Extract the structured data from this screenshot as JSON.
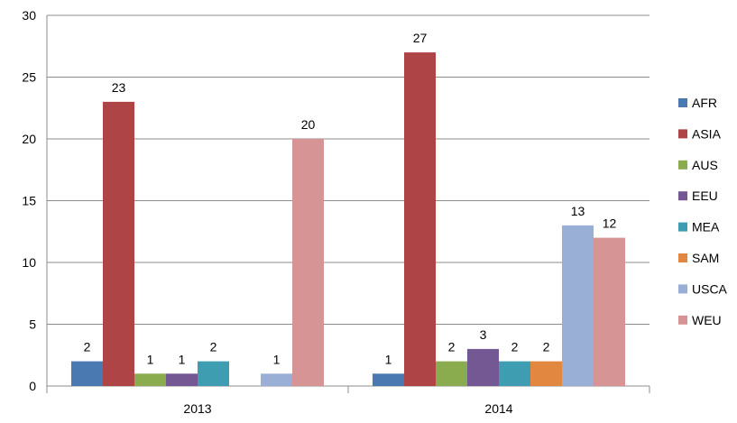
{
  "chart_data": {
    "type": "bar",
    "title": "",
    "xlabel": "",
    "ylabel": "",
    "categories": [
      "2013",
      "2014"
    ],
    "ylim": [
      0,
      30
    ],
    "yticks": [
      0,
      5,
      10,
      15,
      20,
      25,
      30
    ],
    "grid": true,
    "legend": "right",
    "series": [
      {
        "name": "AFR",
        "color": "#4a78b0",
        "values": [
          2,
          1
        ]
      },
      {
        "name": "ASIA",
        "color": "#ae4446",
        "values": [
          23,
          27
        ]
      },
      {
        "name": "AUS",
        "color": "#8bab4f",
        "values": [
          1,
          2
        ]
      },
      {
        "name": "EEU",
        "color": "#735893",
        "values": [
          1,
          3
        ]
      },
      {
        "name": "MEA",
        "color": "#3f9db1",
        "values": [
          2,
          2
        ]
      },
      {
        "name": "SAM",
        "color": "#e2873f",
        "values": [
          null,
          2
        ]
      },
      {
        "name": "USCA",
        "color": "#9aafd6",
        "values": [
          1,
          13
        ]
      },
      {
        "name": "WEU",
        "color": "#d69494",
        "values": [
          20,
          12
        ]
      }
    ]
  }
}
